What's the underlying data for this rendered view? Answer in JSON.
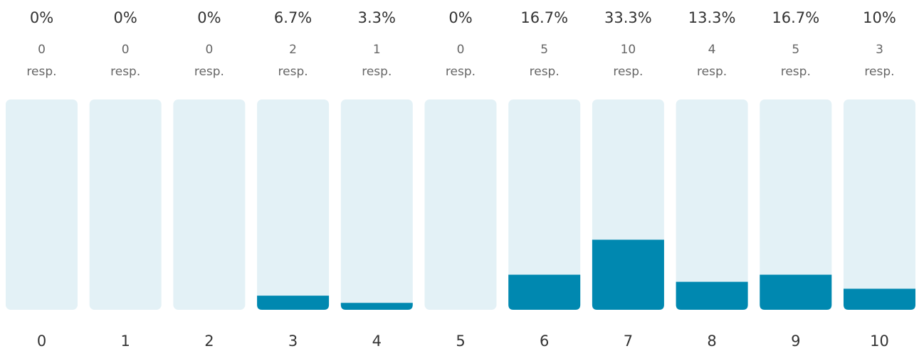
{
  "chart_data": {
    "type": "bar",
    "categories": [
      "0",
      "1",
      "2",
      "3",
      "4",
      "5",
      "6",
      "7",
      "8",
      "9",
      "10"
    ],
    "values": [
      0,
      0,
      0,
      6.7,
      3.3,
      0,
      16.7,
      33.3,
      13.3,
      16.7,
      10
    ],
    "value_labels": [
      "0%",
      "0%",
      "0%",
      "6.7%",
      "3.3%",
      "0%",
      "16.7%",
      "33.3%",
      "13.3%",
      "16.7%",
      "10%"
    ],
    "counts": [
      0,
      0,
      0,
      2,
      1,
      0,
      5,
      10,
      4,
      5,
      3
    ],
    "count_unit": "resp.",
    "ylim": [
      0,
      100
    ],
    "color": "#0088b0",
    "track_color": "#e3f1f6"
  }
}
